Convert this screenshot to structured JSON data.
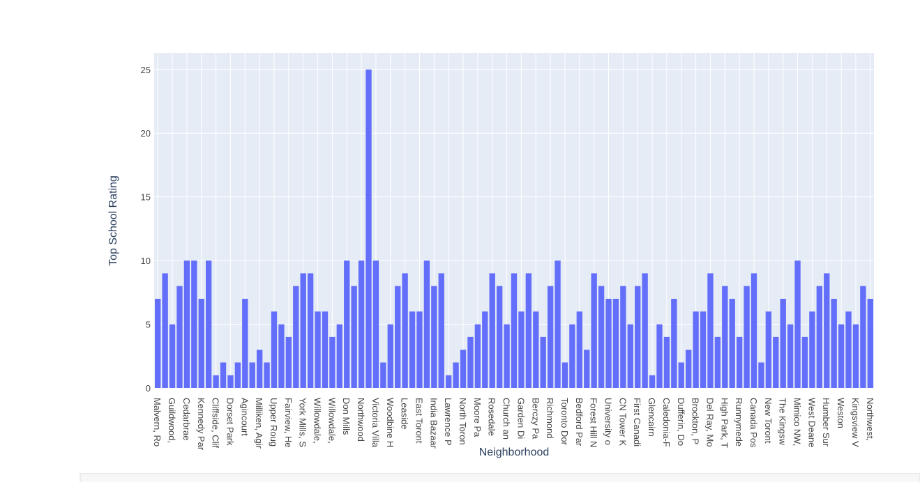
{
  "chart_data": {
    "type": "bar",
    "x_label": "Neighborhood",
    "y_label": "Top School Rating",
    "categories": [
      "Malvern, Ro",
      null,
      "Guildwood,",
      null,
      "Cedarbrae",
      null,
      "Kennedy Par",
      null,
      "Cliffside, Clif",
      null,
      "Dorset Park",
      null,
      "Agincourt",
      null,
      "Milliken, Agir",
      null,
      "Upper Roug",
      null,
      "Fairview, He",
      null,
      "York Mills, S",
      null,
      "Willowdale,",
      null,
      "Willowdale,",
      null,
      "Don Mills",
      null,
      "Northwood",
      null,
      "Victoria Villa",
      null,
      "Woodbine H",
      null,
      "Leaside",
      null,
      "East Toront",
      null,
      "India Bazaar",
      null,
      "Lawrence P",
      null,
      "North Toron",
      null,
      "Moore Pa",
      null,
      "Rosedale",
      null,
      "Church an",
      null,
      "Garden Di",
      null,
      "Berczy Pa",
      null,
      "Richmond",
      null,
      "Toronto Dor",
      null,
      "Bedford Par",
      null,
      "Forest Hill N",
      null,
      "University o",
      null,
      "CN Tower K",
      null,
      "First Canadi",
      null,
      "Glencairn",
      null,
      "Caledonia-F",
      null,
      "Dufferin, Do",
      null,
      "Brockton, P",
      null,
      "Del Ray, Mo",
      null,
      "High Park, T",
      null,
      "Runnymede",
      null,
      "Canada Pos",
      null,
      "New Toront",
      null,
      "The Kingsw",
      null,
      "Mimico NW,",
      null,
      "West Deane",
      null,
      "Humber Sur",
      null,
      "Weston",
      null,
      "Kingsview V",
      null,
      "Northwest,"
    ],
    "values": [
      7,
      9,
      5,
      8,
      10,
      10,
      7,
      10,
      1,
      2,
      1,
      2,
      7,
      2,
      3,
      2,
      6,
      5,
      4,
      8,
      9,
      9,
      6,
      6,
      4,
      5,
      10,
      8,
      10,
      25,
      10,
      2,
      5,
      8,
      9,
      6,
      6,
      10,
      8,
      9,
      1,
      2,
      3,
      4,
      5,
      6,
      9,
      8,
      5,
      9,
      6,
      9,
      6,
      4,
      8,
      10,
      2,
      5,
      6,
      3,
      9,
      8,
      7,
      7,
      8,
      5,
      8,
      9,
      1,
      5,
      4,
      7,
      2,
      3,
      6,
      6,
      9,
      4,
      8,
      7,
      4,
      8,
      9,
      2,
      6,
      4,
      7,
      5,
      10,
      4,
      6,
      8,
      9,
      7,
      5,
      6,
      5,
      8,
      7
    ],
    "color": "#636efa",
    "ylim": [
      0,
      26.3
    ],
    "yticks": [
      0,
      5,
      10,
      15,
      20,
      25
    ],
    "grid": true
  }
}
